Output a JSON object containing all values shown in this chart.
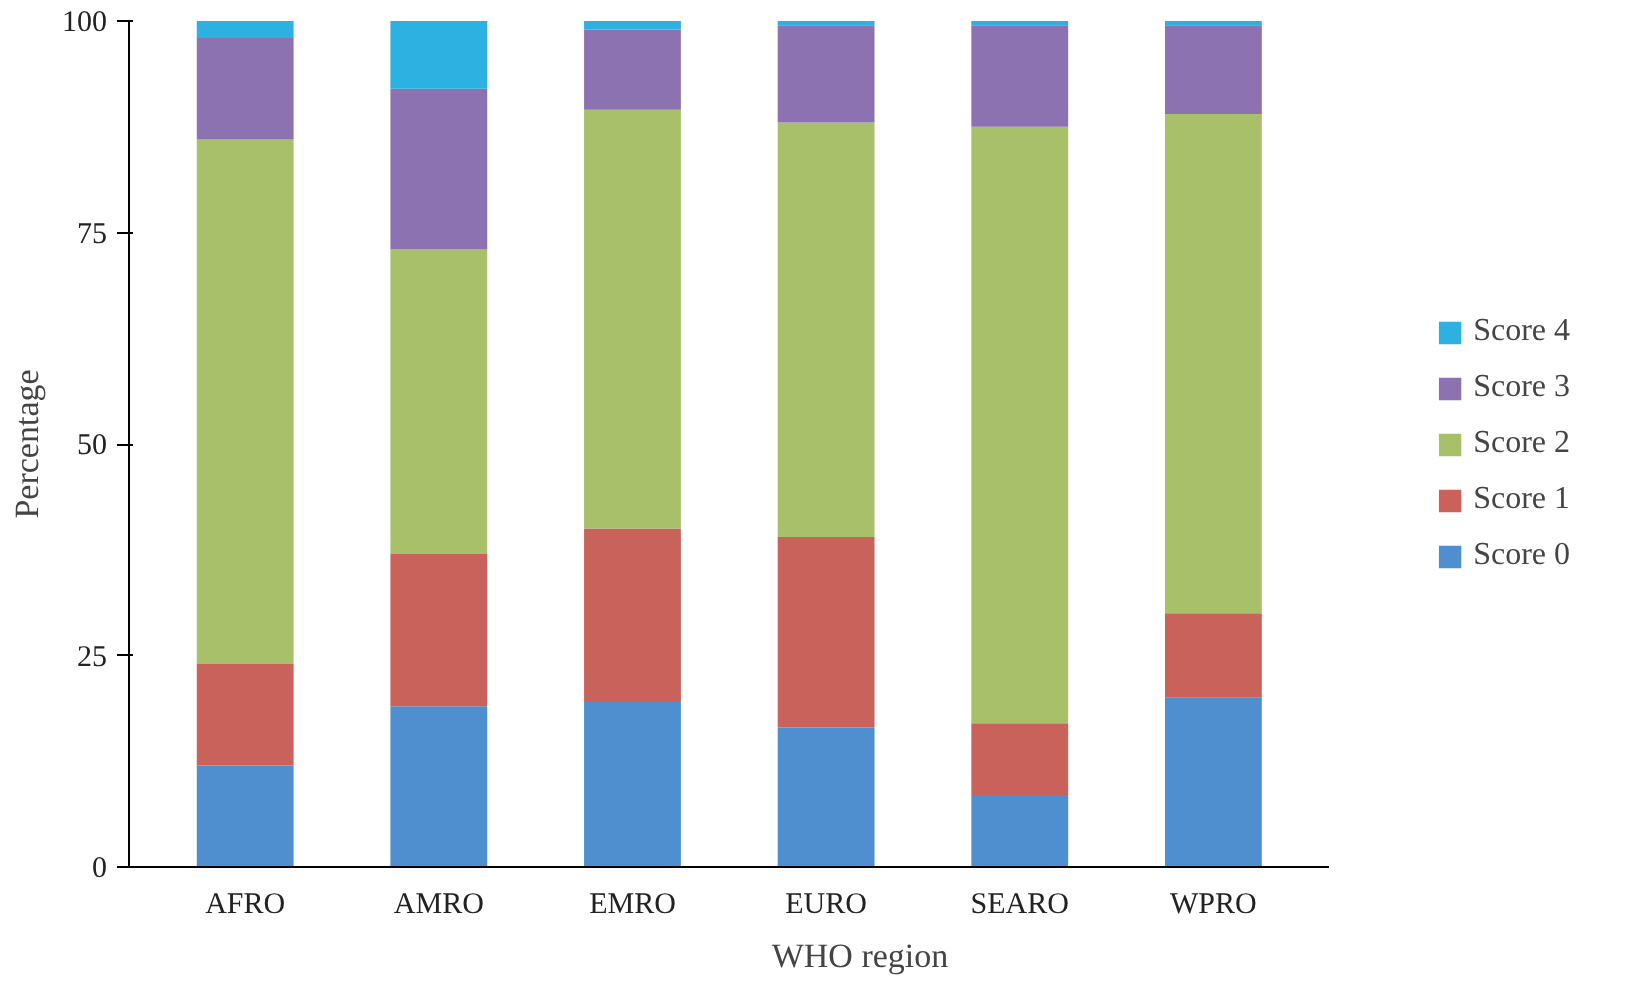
{
  "chart_data": {
    "type": "bar",
    "stacked": true,
    "xlabel": "WHO region",
    "ylabel": "Percentage",
    "categories": [
      "AFRO",
      "AMRO",
      "EMRO",
      "EURO",
      "SEARO",
      "WPRO"
    ],
    "series": [
      {
        "name": "Score 0",
        "color": "#4f8fd0",
        "values": [
          12,
          19,
          19.5,
          16.5,
          8.5,
          20
        ]
      },
      {
        "name": "Score 1",
        "color": "#c8625a",
        "values": [
          12,
          18,
          20.5,
          22.5,
          8.5,
          10
        ]
      },
      {
        "name": "Score 2",
        "color": "#a8c06a",
        "values": [
          62,
          36,
          49.5,
          49,
          70.5,
          59
        ]
      },
      {
        "name": "Score 3",
        "color": "#8c72b0",
        "values": [
          12,
          19,
          9.5,
          11.5,
          12,
          10.5
        ]
      },
      {
        "name": "Score 4",
        "color": "#2db1e0",
        "values": [
          2,
          8,
          1,
          0.5,
          0.5,
          0.5
        ]
      }
    ],
    "ylim": [
      0,
      100
    ],
    "yticks": [
      0,
      25,
      50,
      75,
      100
    ],
    "grid": false,
    "legend": "right"
  }
}
